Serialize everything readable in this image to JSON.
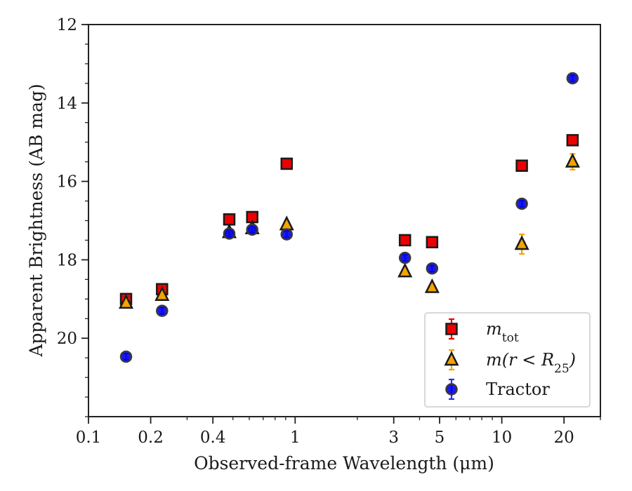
{
  "chart_data": {
    "type": "scatter",
    "xscale": "log",
    "xlim": [
      0.1,
      30
    ],
    "ylim": [
      22,
      12
    ],
    "y_inverted": true,
    "xlabel": "Observed-frame Wavelength (μm)",
    "ylabel": "Apparent Brightness (AB mag)",
    "x_ticks": [
      0.1,
      0.2,
      0.4,
      1,
      3,
      5,
      10,
      20
    ],
    "x_tick_labels": [
      "0.1",
      "0.2",
      "0.4",
      "1",
      "3",
      "5",
      "10",
      "20"
    ],
    "y_ticks": [
      12,
      14,
      16,
      18,
      20
    ],
    "y_tick_labels": [
      "12",
      "14",
      "16",
      "18",
      "20"
    ],
    "legend_position": "lower-right",
    "series": [
      {
        "name": "m_tot",
        "name_parts": {
          "base": "m",
          "sub": "tot"
        },
        "marker": "square",
        "face_color": "#ee0000",
        "edge_color": "#1a1a1a",
        "errorbar_color": "#ee0000",
        "points": [
          {
            "x": 0.152,
            "y": 19.0,
            "err": 0.1
          },
          {
            "x": 0.227,
            "y": 18.75,
            "err": 0.1
          },
          {
            "x": 0.48,
            "y": 16.97,
            "err": 0.05
          },
          {
            "x": 0.62,
            "y": 16.91,
            "err": 0.05
          },
          {
            "x": 0.91,
            "y": 15.55,
            "err": 0.05
          },
          {
            "x": 3.4,
            "y": 17.5,
            "err": 0.05
          },
          {
            "x": 4.6,
            "y": 17.55,
            "err": 0.05
          },
          {
            "x": 12.5,
            "y": 15.6,
            "err": 0.05
          },
          {
            "x": 22.0,
            "y": 14.95,
            "err": 0.1
          }
        ]
      },
      {
        "name": "m(r < R25)",
        "name_parts": {
          "base": "m(r < R",
          "sub": "25",
          "tail": ")"
        },
        "marker": "triangle",
        "face_color": "#f5a300",
        "edge_color": "#1a1a1a",
        "errorbar_color": "#f5a300",
        "points": [
          {
            "x": 0.152,
            "y": 19.1,
            "err": 0.1
          },
          {
            "x": 0.227,
            "y": 18.9,
            "err": 0.1
          },
          {
            "x": 0.48,
            "y": 17.3,
            "err": 0.05
          },
          {
            "x": 0.62,
            "y": 17.2,
            "err": 0.05
          },
          {
            "x": 0.91,
            "y": 17.1,
            "err": 0.05
          },
          {
            "x": 3.4,
            "y": 18.3,
            "err": 0.05
          },
          {
            "x": 4.6,
            "y": 18.7,
            "err": 0.05
          },
          {
            "x": 12.5,
            "y": 17.6,
            "err": 0.25
          },
          {
            "x": 22.0,
            "y": 15.5,
            "err": 0.2
          }
        ]
      },
      {
        "name": "Tractor",
        "marker": "circle",
        "face_color": "#0000ee",
        "edge_color": "#3a3a3a",
        "errorbar_color": "#2a2aff",
        "points": [
          {
            "x": 0.152,
            "y": 20.47,
            "err": 0.08
          },
          {
            "x": 0.227,
            "y": 19.3,
            "err": 0.08
          },
          {
            "x": 0.48,
            "y": 17.33,
            "err": 0.08
          },
          {
            "x": 0.62,
            "y": 17.23,
            "err": 0.08
          },
          {
            "x": 0.91,
            "y": 17.35,
            "err": 0.08
          },
          {
            "x": 3.4,
            "y": 17.95,
            "err": 0.08
          },
          {
            "x": 4.6,
            "y": 18.22,
            "err": 0.08
          },
          {
            "x": 12.5,
            "y": 16.57,
            "err": 0.08
          },
          {
            "x": 22.0,
            "y": 13.37,
            "err": 0.08
          }
        ]
      }
    ]
  }
}
